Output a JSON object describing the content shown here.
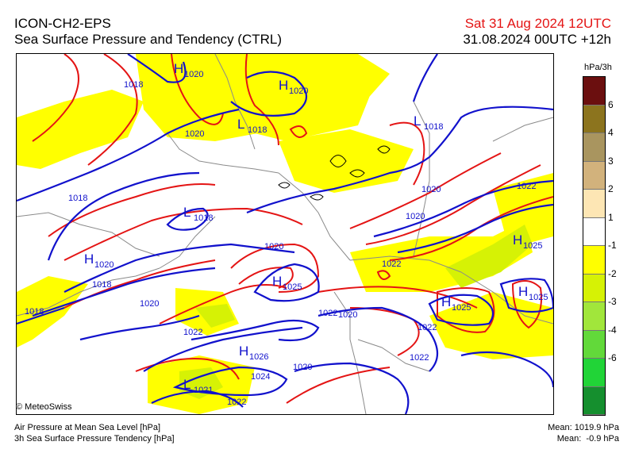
{
  "header": {
    "model": "ICON-CH2-EPS",
    "product": "Sea Surface Pressure and Tendency (CTRL)",
    "valid_time": "Sat 31 Aug 2024 12UTC",
    "run": "31.08.2024 00UTC +12h"
  },
  "legend": {
    "unit": "hPa/3h",
    "colors": [
      "#6b0f0f",
      "#8c741e",
      "#a9955f",
      "#d2b27c",
      "#fde6b4",
      "#ffffff",
      "#ffff00",
      "#d6f205",
      "#a1e63b",
      "#62d93a",
      "#21d437",
      "#158f2e"
    ],
    "labels": [
      "6",
      "4",
      "3",
      "2",
      "1",
      "-1",
      "-2",
      "-3",
      "-4",
      "-6"
    ]
  },
  "map": {
    "isobar_labels": [
      "1018",
      "1018",
      "1018",
      "1018",
      "1020",
      "1020",
      "1020",
      "1020",
      "1020",
      "1020",
      "1020",
      "1022",
      "1022",
      "1022",
      "1022",
      "1022",
      "1022",
      "1024",
      "1022"
    ],
    "pressure_centers": [
      {
        "type": "H",
        "value": "1020"
      },
      {
        "type": "H",
        "value": "1020"
      },
      {
        "type": "L",
        "value": "1018"
      },
      {
        "type": "L",
        "value": "1018"
      },
      {
        "type": "L",
        "value": "1018"
      },
      {
        "type": "H",
        "value": "1020"
      },
      {
        "type": "H",
        "value": "1025"
      },
      {
        "type": "H",
        "value": "1025"
      },
      {
        "type": "H",
        "value": "1025"
      },
      {
        "type": "H",
        "value": "1025"
      },
      {
        "type": "H",
        "value": "1026"
      },
      {
        "type": "L",
        "value": "1021"
      }
    ],
    "colors": {
      "isobar": "#1111cc",
      "tendency": "#e41414",
      "fill_neg1": "#ffff00",
      "fill_neg2": "#d6f205",
      "border": "#8a8a8a"
    }
  },
  "footer": {
    "credit": "© MeteoSwiss",
    "line1": "Air Pressure at Mean Sea Level [hPa]",
    "line2": "3h Sea Surface Pressure Tendency [hPa]",
    "mean1": "Mean: 1019.9 hPa",
    "mean2": "Mean:  -0.9 hPa"
  }
}
